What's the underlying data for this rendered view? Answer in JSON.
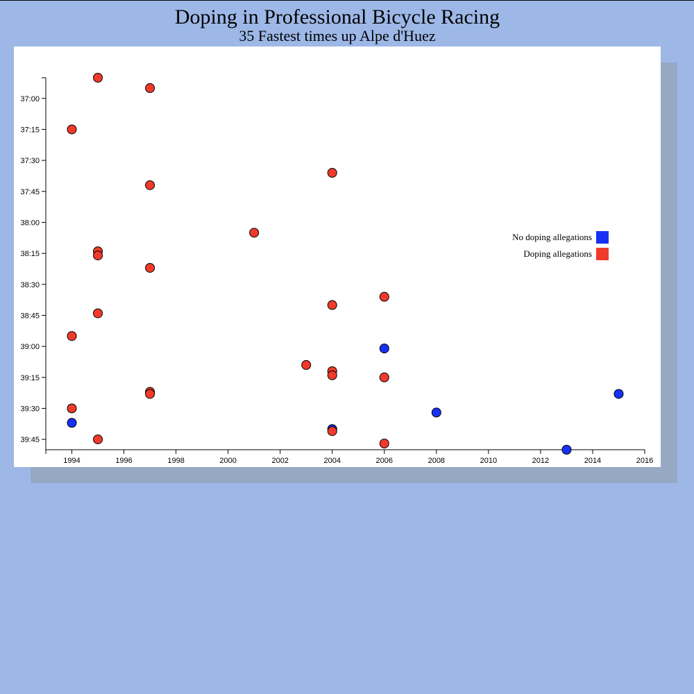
{
  "header": {
    "title": "Doping in Professional Bicycle Racing",
    "subtitle": "35 Fastest times up Alpe d'Huez"
  },
  "colors": {
    "background": "#9db8e7",
    "no_allegations": "#1731f5",
    "allegations": "#f03a2b"
  },
  "chart_data": {
    "type": "scatter",
    "title": "Doping in Professional Bicycle Racing",
    "subtitle": "35 Fastest times up Alpe d'Huez",
    "xlabel": "",
    "ylabel": "",
    "xlim": [
      1993,
      2016
    ],
    "ylim_seconds": [
      2210,
      2390
    ],
    "y_inverted": true,
    "x_ticks": [
      1994,
      1996,
      1998,
      2000,
      2002,
      2004,
      2006,
      2008,
      2010,
      2012,
      2014,
      2016
    ],
    "y_ticks": [
      "37:00",
      "37:15",
      "37:30",
      "37:45",
      "38:00",
      "38:15",
      "38:30",
      "38:45",
      "39:00",
      "39:15",
      "39:30",
      "39:45"
    ],
    "legend": {
      "placement": "right",
      "entries": [
        {
          "label": "No doping allegations",
          "key": "no"
        },
        {
          "label": "Doping allegations",
          "key": "yes"
        }
      ]
    },
    "points": [
      {
        "year": 1995,
        "time": "36:50",
        "doping": true
      },
      {
        "year": 1997,
        "time": "36:55",
        "doping": true
      },
      {
        "year": 1994,
        "time": "37:15",
        "doping": true
      },
      {
        "year": 2004,
        "time": "37:36",
        "doping": true
      },
      {
        "year": 1997,
        "time": "37:42",
        "doping": true
      },
      {
        "year": 2001,
        "time": "38:05",
        "doping": true
      },
      {
        "year": 1995,
        "time": "38:14",
        "doping": true
      },
      {
        "year": 1995,
        "time": "38:16",
        "doping": true
      },
      {
        "year": 1997,
        "time": "38:22",
        "doping": true
      },
      {
        "year": 2006,
        "time": "38:36",
        "doping": true
      },
      {
        "year": 2004,
        "time": "38:40",
        "doping": true
      },
      {
        "year": 1995,
        "time": "38:44",
        "doping": true
      },
      {
        "year": 1994,
        "time": "38:55",
        "doping": true
      },
      {
        "year": 2006,
        "time": "39:01",
        "doping": false
      },
      {
        "year": 2003,
        "time": "39:09",
        "doping": true
      },
      {
        "year": 2004,
        "time": "39:12",
        "doping": true
      },
      {
        "year": 2004,
        "time": "39:14",
        "doping": true
      },
      {
        "year": 2006,
        "time": "39:15",
        "doping": true
      },
      {
        "year": 1997,
        "time": "39:22",
        "doping": true
      },
      {
        "year": 1997,
        "time": "39:23",
        "doping": true
      },
      {
        "year": 2015,
        "time": "39:23",
        "doping": false
      },
      {
        "year": 1994,
        "time": "39:30",
        "doping": true
      },
      {
        "year": 2008,
        "time": "39:32",
        "doping": false
      },
      {
        "year": 1994,
        "time": "39:37",
        "doping": false
      },
      {
        "year": 2004,
        "time": "39:40",
        "doping": false
      },
      {
        "year": 2004,
        "time": "39:41",
        "doping": true
      },
      {
        "year": 1995,
        "time": "39:45",
        "doping": true
      },
      {
        "year": 2006,
        "time": "39:47",
        "doping": true
      },
      {
        "year": 2013,
        "time": "39:50",
        "doping": false
      }
    ]
  }
}
